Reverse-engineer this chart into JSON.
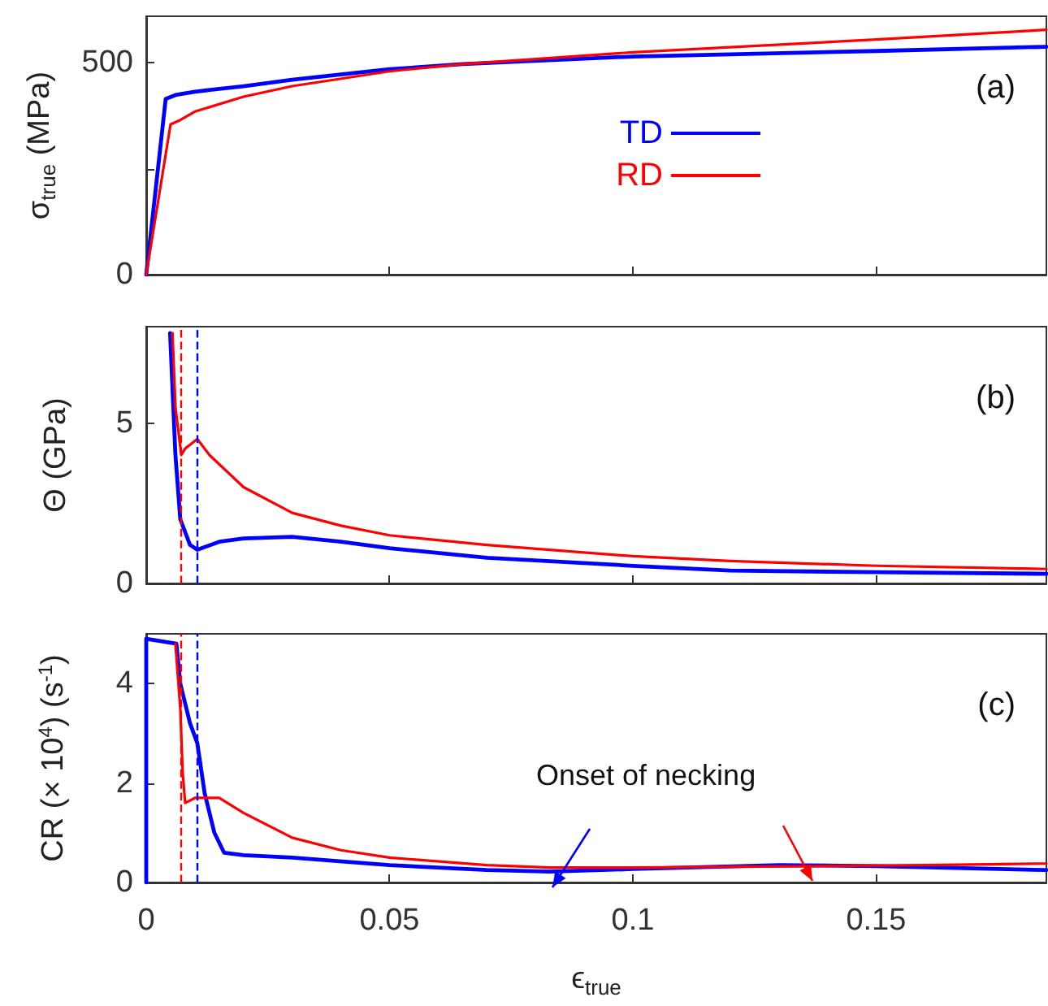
{
  "chart_data": [
    {
      "type": "line",
      "ylabel": "σ$_{true}$ (MPa)",
      "xlim": [
        0,
        0.185
      ],
      "xticks": [
        0,
        0.05,
        0.1,
        0.15
      ],
      "ylim": [
        0,
        610
      ],
      "yticks": [
        0,
        {
          "value": 250,
          "label": null
        },
        500
      ],
      "tick_labels": "y",
      "grid": false,
      "marker": "none",
      "line_style": "solid",
      "legend": "center",
      "annotations": [
        "(a)"
      ],
      "series": [
        {
          "name": "TD",
          "color": "#0000ff",
          "x": [
            0,
            0.004,
            0.006,
            0.01,
            0.02,
            0.03,
            0.05,
            0.065,
            0.1,
            0.15,
            0.185
          ],
          "values": [
            0,
            415,
            424,
            432,
            445,
            460,
            485,
            497,
            515,
            528,
            538
          ]
        },
        {
          "name": "RD",
          "color": "#ff0000",
          "x": [
            0,
            0.005,
            0.007,
            0.01,
            0.02,
            0.03,
            0.05,
            0.065,
            0.1,
            0.15,
            0.185
          ],
          "values": [
            0,
            355,
            365,
            385,
            420,
            445,
            480,
            497,
            525,
            555,
            578
          ]
        }
      ]
    },
    {
      "type": "line",
      "ylabel": "Θ (GPa)",
      "xlim": [
        0,
        0.185
      ],
      "xticks": [
        0,
        0.05,
        0.1,
        0.15
      ],
      "ylim": [
        0,
        8
      ],
      "yticks": [
        0,
        5
      ],
      "tick_labels": "y",
      "grid": false,
      "marker": "none",
      "line_style": "solid",
      "annotations": [
        "(b)"
      ],
      "ref_lines": [
        {
          "axis": "x",
          "value": 0.0072,
          "color": "#ff0000",
          "line_style": "dashed"
        },
        {
          "axis": "x",
          "value": 0.0106,
          "color": "#0000ff",
          "line_style": "dashed"
        }
      ],
      "series": [
        {
          "color": "#0000ff",
          "x": [
            0.0049,
            0.006,
            0.007,
            0.009,
            0.0105,
            0.015,
            0.02,
            0.03,
            0.04,
            0.05,
            0.07,
            0.1,
            0.12,
            0.15,
            0.185
          ],
          "values": [
            7.8,
            4,
            2,
            1.2,
            1.05,
            1.3,
            1.4,
            1.45,
            1.3,
            1.1,
            0.8,
            0.55,
            0.4,
            0.35,
            0.3
          ]
        },
        {
          "color": "#ff0000",
          "x": [
            0.0054,
            0.006,
            0.0072,
            0.008,
            0.0105,
            0.013,
            0.02,
            0.03,
            0.04,
            0.05,
            0.07,
            0.1,
            0.12,
            0.15,
            0.185
          ],
          "values": [
            7.8,
            5.5,
            4,
            4.2,
            4.5,
            4,
            3,
            2.2,
            1.8,
            1.5,
            1.2,
            0.85,
            0.7,
            0.55,
            0.45
          ]
        }
      ]
    },
    {
      "type": "line",
      "ylabel": "CR (× 10$^{4}$) (s$^{-1}$)",
      "xlabel": "ϵ$_{true}$",
      "xlim": [
        0,
        0.185
      ],
      "xticks": [
        0,
        0.05,
        0.1,
        0.15
      ],
      "ylim": [
        0,
        5
      ],
      "yticks": [
        0,
        2,
        4
      ],
      "grid": false,
      "marker": "none",
      "line_style": "solid",
      "annotations": [
        "(c)",
        "Onset of necking"
      ],
      "ref_lines": [
        {
          "axis": "x",
          "value": 0.0072,
          "color": "#ff0000",
          "line_style": "dashed"
        },
        {
          "axis": "x",
          "value": 0.0106,
          "color": "#0000ff",
          "line_style": "dashed"
        }
      ],
      "series": [
        {
          "color": "#0000ff",
          "x": [
            0,
            0,
            0.0062,
            0.007,
            0.009,
            0.0105,
            0.012,
            0.014,
            0.016,
            0.02,
            0.03,
            0.05,
            0.07,
            0.083,
            0.1,
            0.13,
            0.15,
            0.185
          ],
          "values": [
            0,
            4.9,
            4.8,
            4,
            3.2,
            2.8,
            1.8,
            1,
            0.6,
            0.55,
            0.5,
            0.35,
            0.25,
            0.22,
            0.27,
            0.35,
            0.33,
            0.25
          ]
        },
        {
          "color": "#ff0000",
          "x": [
            0.006,
            0.007,
            0.0075,
            0.008,
            0.01,
            0.015,
            0.02,
            0.03,
            0.04,
            0.05,
            0.07,
            0.083,
            0.1,
            0.138,
            0.16,
            0.185
          ],
          "values": [
            4.8,
            3.5,
            2.2,
            1.6,
            1.7,
            1.7,
            1.4,
            0.9,
            0.65,
            0.5,
            0.35,
            0.3,
            0.3,
            0.33,
            0.35,
            0.38
          ]
        }
      ]
    }
  ]
}
